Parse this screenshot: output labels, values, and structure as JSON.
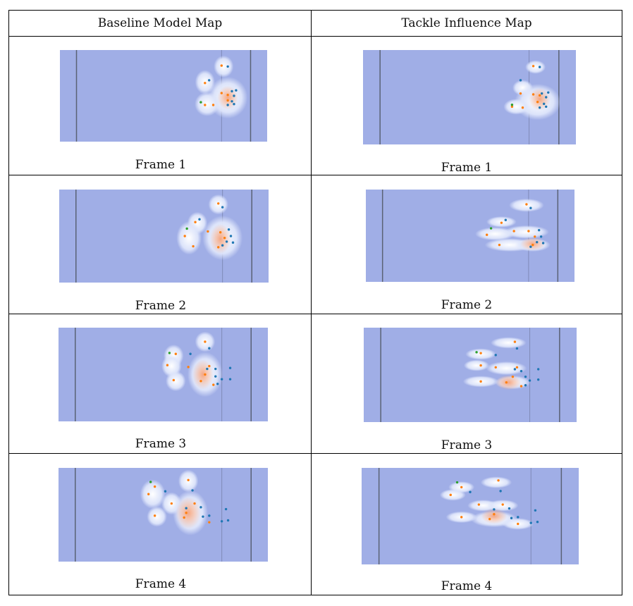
{
  "columns": [
    {
      "key": "baseline",
      "header": "Baseline Model Map"
    },
    {
      "key": "tackle",
      "header": "Tackle Influence Map"
    }
  ],
  "colors": {
    "field": "#a0aee6",
    "field_line": "#5a6275",
    "halo": "#dfe6fb",
    "hot": "#f4a783",
    "offense": "#ff7f0e",
    "defense": "#1f77b4",
    "ball_carrier": "#2ca02c"
  },
  "frames": [
    {
      "label": "Frame 1",
      "baseline": {
        "orange": [
          [
            0.78,
            0.17
          ],
          [
            0.7,
            0.36
          ],
          [
            0.78,
            0.47
          ],
          [
            0.81,
            0.49
          ],
          [
            0.7,
            0.6
          ],
          [
            0.74,
            0.6
          ],
          [
            0.81,
            0.55
          ]
        ],
        "blue": [
          [
            0.81,
            0.18
          ],
          [
            0.72,
            0.33
          ],
          [
            0.83,
            0.45
          ],
          [
            0.84,
            0.5
          ],
          [
            0.85,
            0.44
          ],
          [
            0.83,
            0.56
          ],
          [
            0.84,
            0.59
          ],
          [
            0.81,
            0.6
          ]
        ],
        "green": [
          [
            0.68,
            0.57
          ]
        ],
        "hot": [
          [
            0.81,
            0.52,
            0.05,
            0.13
          ]
        ],
        "halo": [
          [
            0.79,
            0.18,
            0.04,
            0.1
          ],
          [
            0.7,
            0.35,
            0.04,
            0.11
          ],
          [
            0.81,
            0.52,
            0.08,
            0.19
          ],
          [
            0.71,
            0.59,
            0.05,
            0.11
          ]
        ]
      },
      "tackle": {
        "orange": [
          [
            0.8,
            0.17
          ],
          [
            0.74,
            0.46
          ],
          [
            0.8,
            0.47
          ],
          [
            0.83,
            0.48
          ],
          [
            0.7,
            0.6
          ],
          [
            0.75,
            0.61
          ],
          [
            0.82,
            0.55
          ]
        ],
        "blue": [
          [
            0.83,
            0.18
          ],
          [
            0.74,
            0.32
          ],
          [
            0.84,
            0.46
          ],
          [
            0.86,
            0.5
          ],
          [
            0.87,
            0.45
          ],
          [
            0.85,
            0.57
          ],
          [
            0.86,
            0.6
          ],
          [
            0.83,
            0.61
          ]
        ],
        "green": [
          [
            0.7,
            0.58
          ]
        ],
        "hot": [
          [
            0.83,
            0.52,
            0.05,
            0.12
          ]
        ],
        "halo": [
          [
            0.81,
            0.18,
            0.04,
            0.06
          ],
          [
            0.75,
            0.4,
            0.04,
            0.07
          ],
          [
            0.82,
            0.55,
            0.09,
            0.16
          ],
          [
            0.72,
            0.6,
            0.05,
            0.07
          ]
        ]
      }
    },
    {
      "label": "Frame 2",
      "baseline": {
        "orange": [
          [
            0.76,
            0.15
          ],
          [
            0.65,
            0.35
          ],
          [
            0.6,
            0.5
          ],
          [
            0.71,
            0.45
          ],
          [
            0.77,
            0.46
          ],
          [
            0.79,
            0.52
          ],
          [
            0.64,
            0.61
          ],
          [
            0.76,
            0.62
          ]
        ],
        "blue": [
          [
            0.78,
            0.19
          ],
          [
            0.67,
            0.32
          ],
          [
            0.81,
            0.43
          ],
          [
            0.82,
            0.5
          ],
          [
            0.8,
            0.56
          ],
          [
            0.83,
            0.57
          ],
          [
            0.78,
            0.6
          ]
        ],
        "green": [
          [
            0.61,
            0.42
          ]
        ],
        "hot": [
          [
            0.77,
            0.53,
            0.05,
            0.16
          ]
        ],
        "halo": [
          [
            0.76,
            0.16,
            0.04,
            0.09
          ],
          [
            0.66,
            0.36,
            0.04,
            0.1
          ],
          [
            0.78,
            0.52,
            0.08,
            0.2
          ],
          [
            0.62,
            0.52,
            0.05,
            0.15
          ]
        ]
      },
      "tackle": {
        "orange": [
          [
            0.77,
            0.16
          ],
          [
            0.65,
            0.36
          ],
          [
            0.58,
            0.49
          ],
          [
            0.71,
            0.45
          ],
          [
            0.78,
            0.45
          ],
          [
            0.81,
            0.51
          ],
          [
            0.64,
            0.6
          ],
          [
            0.8,
            0.6
          ]
        ],
        "blue": [
          [
            0.79,
            0.2
          ],
          [
            0.67,
            0.33
          ],
          [
            0.83,
            0.44
          ],
          [
            0.84,
            0.51
          ],
          [
            0.82,
            0.57
          ],
          [
            0.85,
            0.58
          ],
          [
            0.79,
            0.62
          ]
        ],
        "green": [
          [
            0.6,
            0.42
          ]
        ],
        "hot": [
          [
            0.8,
            0.59,
            0.06,
            0.07
          ]
        ],
        "halo": [
          [
            0.77,
            0.17,
            0.07,
            0.06
          ],
          [
            0.65,
            0.35,
            0.06,
            0.05
          ],
          [
            0.62,
            0.48,
            0.08,
            0.06
          ],
          [
            0.77,
            0.46,
            0.09,
            0.06
          ],
          [
            0.69,
            0.6,
            0.1,
            0.06
          ],
          [
            0.8,
            0.6,
            0.07,
            0.06
          ]
        ]
      }
    },
    {
      "label": "Frame 3",
      "baseline": {
        "orange": [
          [
            0.7,
            0.15
          ],
          [
            0.56,
            0.28
          ],
          [
            0.62,
            0.42
          ],
          [
            0.52,
            0.4
          ],
          [
            0.72,
            0.41
          ],
          [
            0.7,
            0.5
          ],
          [
            0.68,
            0.57
          ],
          [
            0.55,
            0.56
          ],
          [
            0.74,
            0.61
          ]
        ],
        "blue": [
          [
            0.72,
            0.22
          ],
          [
            0.63,
            0.28
          ],
          [
            0.71,
            0.44
          ],
          [
            0.75,
            0.44
          ],
          [
            0.75,
            0.52
          ],
          [
            0.78,
            0.55
          ],
          [
            0.82,
            0.43
          ],
          [
            0.82,
            0.55
          ],
          [
            0.76,
            0.6
          ]
        ],
        "green": [
          [
            0.53,
            0.27
          ]
        ],
        "hot": [
          [
            0.69,
            0.5,
            0.05,
            0.16
          ]
        ],
        "halo": [
          [
            0.7,
            0.15,
            0.04,
            0.09
          ],
          [
            0.55,
            0.3,
            0.04,
            0.1
          ],
          [
            0.54,
            0.41,
            0.04,
            0.1
          ],
          [
            0.7,
            0.5,
            0.07,
            0.2
          ],
          [
            0.56,
            0.57,
            0.04,
            0.09
          ]
        ]
      },
      "tackle": {
        "orange": [
          [
            0.71,
            0.15
          ],
          [
            0.55,
            0.27
          ],
          [
            0.55,
            0.4
          ],
          [
            0.62,
            0.42
          ],
          [
            0.72,
            0.42
          ],
          [
            0.7,
            0.52
          ],
          [
            0.67,
            0.58
          ],
          [
            0.55,
            0.57
          ],
          [
            0.74,
            0.62
          ]
        ],
        "blue": [
          [
            0.72,
            0.22
          ],
          [
            0.62,
            0.29
          ],
          [
            0.71,
            0.44
          ],
          [
            0.74,
            0.46
          ],
          [
            0.76,
            0.52
          ],
          [
            0.78,
            0.56
          ],
          [
            0.82,
            0.44
          ],
          [
            0.82,
            0.55
          ],
          [
            0.76,
            0.61
          ]
        ],
        "green": [
          [
            0.53,
            0.26
          ]
        ],
        "hot": [
          [
            0.68,
            0.58,
            0.06,
            0.08
          ]
        ],
        "halo": [
          [
            0.68,
            0.16,
            0.07,
            0.05
          ],
          [
            0.55,
            0.28,
            0.06,
            0.05
          ],
          [
            0.53,
            0.4,
            0.05,
            0.05
          ],
          [
            0.67,
            0.43,
            0.08,
            0.06
          ],
          [
            0.7,
            0.58,
            0.07,
            0.06
          ],
          [
            0.55,
            0.57,
            0.07,
            0.05
          ]
        ]
      }
    },
    {
      "label": "Frame 4",
      "baseline": {
        "orange": [
          [
            0.62,
            0.13
          ],
          [
            0.46,
            0.2
          ],
          [
            0.43,
            0.28
          ],
          [
            0.54,
            0.38
          ],
          [
            0.65,
            0.38
          ],
          [
            0.61,
            0.48
          ],
          [
            0.46,
            0.51
          ],
          [
            0.6,
            0.53
          ],
          [
            0.72,
            0.58
          ]
        ],
        "blue": [
          [
            0.64,
            0.24
          ],
          [
            0.51,
            0.25
          ],
          [
            0.61,
            0.43
          ],
          [
            0.68,
            0.42
          ],
          [
            0.69,
            0.52
          ],
          [
            0.72,
            0.51
          ],
          [
            0.8,
            0.44
          ],
          [
            0.78,
            0.57
          ],
          [
            0.81,
            0.56
          ]
        ],
        "green": [
          [
            0.44,
            0.15
          ]
        ],
        "hot": [
          [
            0.62,
            0.48,
            0.06,
            0.17
          ]
        ],
        "halo": [
          [
            0.62,
            0.14,
            0.04,
            0.1
          ],
          [
            0.45,
            0.28,
            0.05,
            0.13
          ],
          [
            0.54,
            0.38,
            0.04,
            0.1
          ],
          [
            0.63,
            0.48,
            0.07,
            0.2
          ],
          [
            0.47,
            0.52,
            0.04,
            0.09
          ]
        ]
      },
      "tackle": {
        "orange": [
          [
            0.63,
            0.13
          ],
          [
            0.46,
            0.2
          ],
          [
            0.41,
            0.28
          ],
          [
            0.54,
            0.38
          ],
          [
            0.65,
            0.38
          ],
          [
            0.61,
            0.48
          ],
          [
            0.46,
            0.51
          ],
          [
            0.59,
            0.53
          ],
          [
            0.72,
            0.58
          ]
        ],
        "blue": [
          [
            0.64,
            0.24
          ],
          [
            0.5,
            0.25
          ],
          [
            0.61,
            0.43
          ],
          [
            0.68,
            0.42
          ],
          [
            0.69,
            0.52
          ],
          [
            0.72,
            0.51
          ],
          [
            0.8,
            0.44
          ],
          [
            0.78,
            0.57
          ],
          [
            0.81,
            0.56
          ]
        ],
        "green": [
          [
            0.44,
            0.15
          ]
        ],
        "hot": [
          [
            0.61,
            0.5,
            0.06,
            0.08
          ]
        ],
        "halo": [
          [
            0.62,
            0.15,
            0.06,
            0.05
          ],
          [
            0.46,
            0.2,
            0.05,
            0.05
          ],
          [
            0.42,
            0.28,
            0.05,
            0.05
          ],
          [
            0.56,
            0.39,
            0.06,
            0.05
          ],
          [
            0.65,
            0.39,
            0.06,
            0.05
          ],
          [
            0.61,
            0.53,
            0.09,
            0.07
          ],
          [
            0.46,
            0.51,
            0.06,
            0.05
          ],
          [
            0.72,
            0.58,
            0.06,
            0.05
          ]
        ]
      }
    }
  ]
}
